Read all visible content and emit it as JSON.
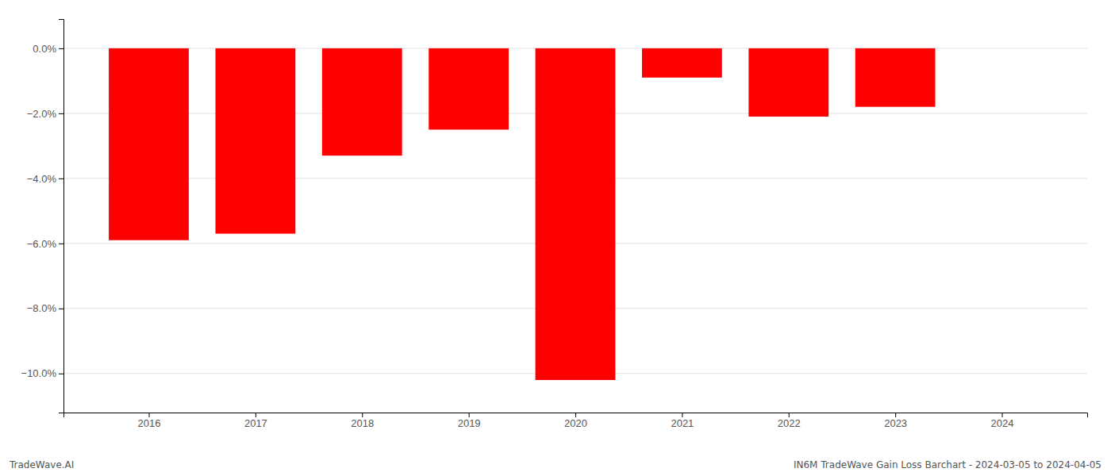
{
  "chart_data": {
    "type": "bar",
    "x": [
      2016,
      2017,
      2018,
      2019,
      2020,
      2021,
      2022,
      2023,
      2024
    ],
    "values": [
      -5.9,
      -5.7,
      -3.3,
      -2.5,
      -10.2,
      -0.9,
      -2.1,
      -1.8,
      null
    ],
    "color": "#ff0000",
    "xlim": [
      2015.2,
      2024.8
    ],
    "xticks": [
      2016,
      2017,
      2018,
      2019,
      2020,
      2021,
      2022,
      2023,
      2024
    ],
    "ylim": [
      -11.2,
      0.9
    ],
    "yticks": [
      {
        "value": 0,
        "label": "0.0%"
      },
      {
        "value": -2,
        "label": "−2.0%"
      },
      {
        "value": -4,
        "label": "−4.0%"
      },
      {
        "value": -6,
        "label": "−6.0%"
      },
      {
        "value": -8,
        "label": "−8.0%"
      },
      {
        "value": -10,
        "label": "−10.0%"
      }
    ],
    "grid": true,
    "annotations": [
      "TradeWave.AI",
      "IN6M TradeWave Gain Loss Barchart - 2024-03-05 to 2024-04-05"
    ]
  }
}
